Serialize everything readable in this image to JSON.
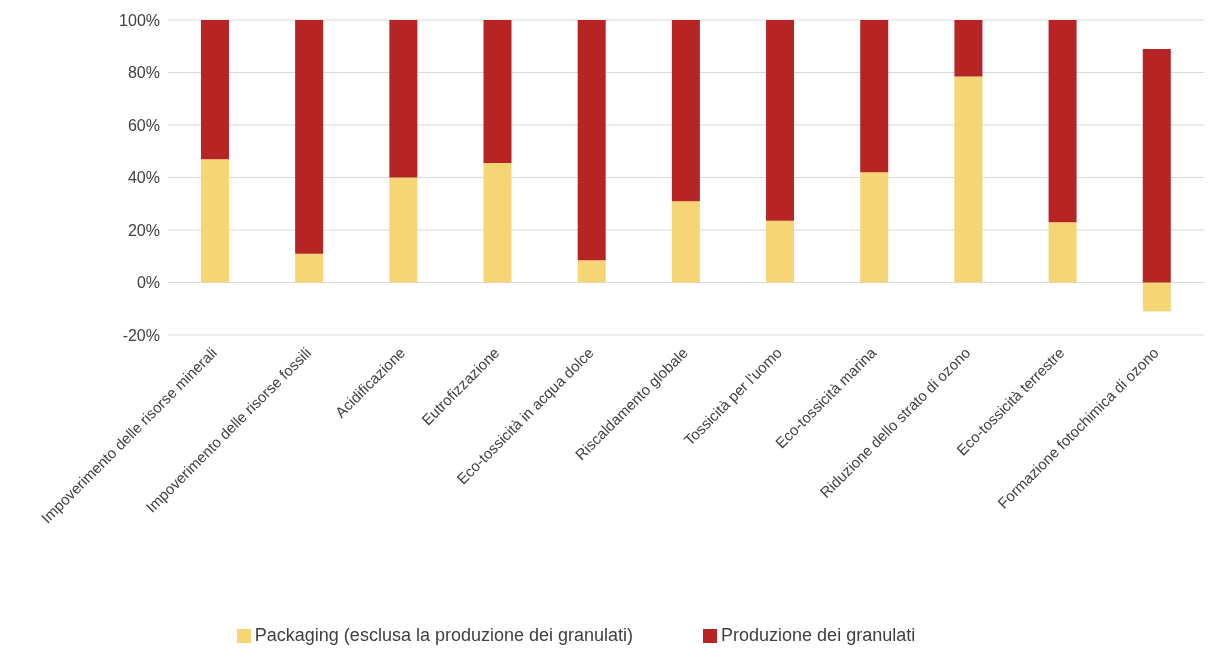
{
  "chart_data": {
    "type": "bar",
    "stacked": true,
    "categories": [
      "Impoverimento delle risorse minerali",
      "Impoverimento delle risorse fossili",
      "Acidificazione",
      "Eutrofizzazione",
      "Eco-tossicità in acqua dolce",
      "Riscaldamento globale",
      "Tossicità per l'uomo",
      "Eco-tossicità marina",
      "Riduzione dello strato di ozono",
      "Eco-tossicità terrestre",
      "Formazione fotochimica di ozono"
    ],
    "series": [
      {
        "name": "Packaging (esclusa la produzione dei granulati)",
        "color": "#f6d574",
        "values": [
          47,
          11,
          40,
          45.5,
          8.5,
          31,
          23.5,
          42,
          78.5,
          23,
          -11
        ]
      },
      {
        "name": "Produzione dei granulati",
        "color": "#b72424",
        "values": [
          53,
          89,
          60,
          54.5,
          91.5,
          69,
          76.5,
          58,
          21.5,
          77,
          89
        ]
      }
    ],
    "ylim": [
      -20,
      100
    ],
    "yticks": [
      {
        "value": -20,
        "label": "-20%"
      },
      {
        "value": 0,
        "label": "0%"
      },
      {
        "value": 20,
        "label": "20%"
      },
      {
        "value": 40,
        "label": "40%"
      },
      {
        "value": 60,
        "label": "60%"
      },
      {
        "value": 80,
        "label": "80%"
      },
      {
        "value": 100,
        "label": "100%"
      }
    ],
    "grid": "y",
    "legend": "bottom"
  }
}
